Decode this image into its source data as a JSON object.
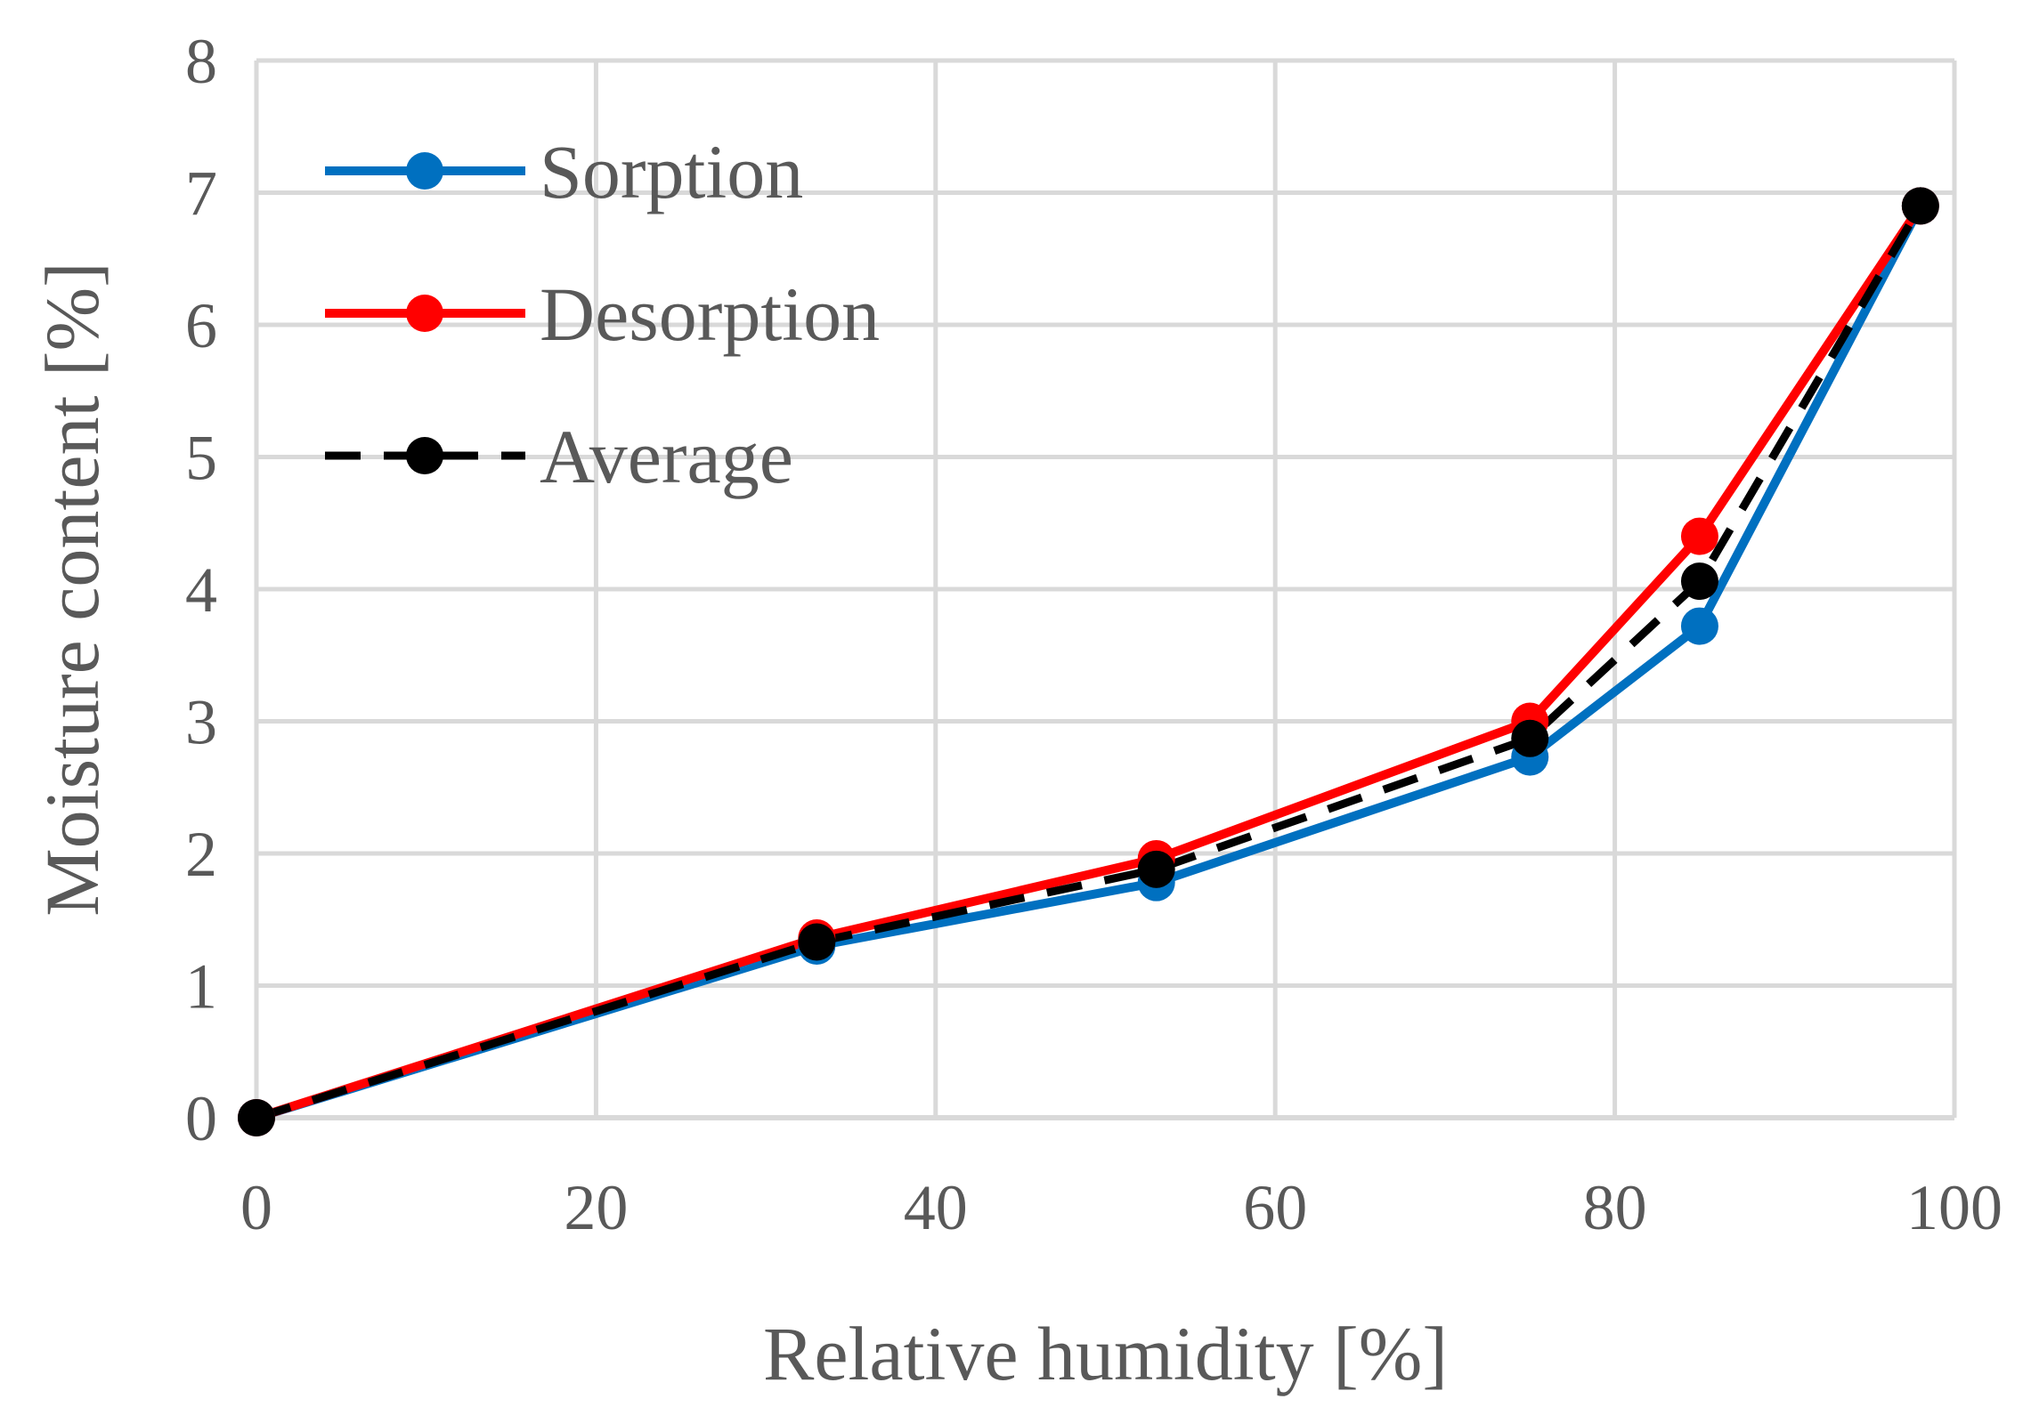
{
  "chart_data": {
    "type": "line",
    "title": "",
    "xlabel": "Relative humidity [%]",
    "ylabel": "Moisture content [%]",
    "xlim": [
      0,
      100
    ],
    "ylim": [
      0,
      8
    ],
    "xticks": [
      0,
      20,
      40,
      60,
      80,
      100
    ],
    "yticks": [
      0,
      1,
      2,
      3,
      4,
      5,
      6,
      7,
      8
    ],
    "grid": true,
    "legend_position": "top-left",
    "x": [
      0,
      33,
      53,
      75,
      85,
      98
    ],
    "series": [
      {
        "name": "Sorption",
        "color": "#0070C0",
        "dashed": false,
        "values": [
          0,
          1.3,
          1.78,
          2.73,
          3.72,
          6.9
        ]
      },
      {
        "name": "Desorption",
        "color": "#FF0000",
        "dashed": false,
        "values": [
          0,
          1.36,
          1.96,
          3.0,
          4.4,
          6.9
        ]
      },
      {
        "name": "Average",
        "color": "#000000",
        "dashed": true,
        "values": [
          0,
          1.33,
          1.88,
          2.87,
          4.06,
          6.9
        ]
      }
    ]
  }
}
